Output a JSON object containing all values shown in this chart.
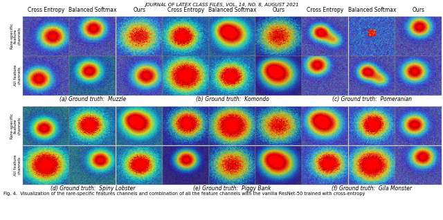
{
  "journal_header": "JOURNAL OF LATEX CLASS FILES, VOL. 14, NO. 8, AUGUST 2021",
  "col_headers": [
    "Cross Entropy",
    "Balanced Softmax",
    "Ours",
    "Cross Entropy",
    "Balanced Softmax",
    "Ours",
    "Cross Entropy",
    "Balanced Softmax",
    "Ours"
  ],
  "row_labels_top": [
    "Rare-specific\nfeature\nchannels",
    "All feature\nchannels"
  ],
  "row_labels_bottom": [
    "Rare-specific\nfeature\nchannels",
    "All feature\nchannels"
  ],
  "ground_truths_top": [
    "(a) Ground truth:  Muzzle",
    "(b) Ground truth:  Komondo",
    "(c) Ground truth:  Pomeranian"
  ],
  "ground_truths_bottom": [
    "(d) Ground truth:  Spiny Lobster",
    "(e) Ground truth:  Piggy Bank",
    "(f) Ground truth:  Gila Monster"
  ],
  "caption": "Fig. 4.  Visualization of the rare-specific features channels and combination of all the feature channels with the vanilla ResNet-50 trained with cross-entropy",
  "bg_color": "#ffffff",
  "header_fontsize": 5.0,
  "col_header_fontsize": 5.5,
  "row_label_fontsize": 4.2,
  "gt_fontsize": 5.5,
  "caption_fontsize": 4.8,
  "n_cols": 9,
  "n_rows_per_block": 2,
  "n_blocks": 2
}
